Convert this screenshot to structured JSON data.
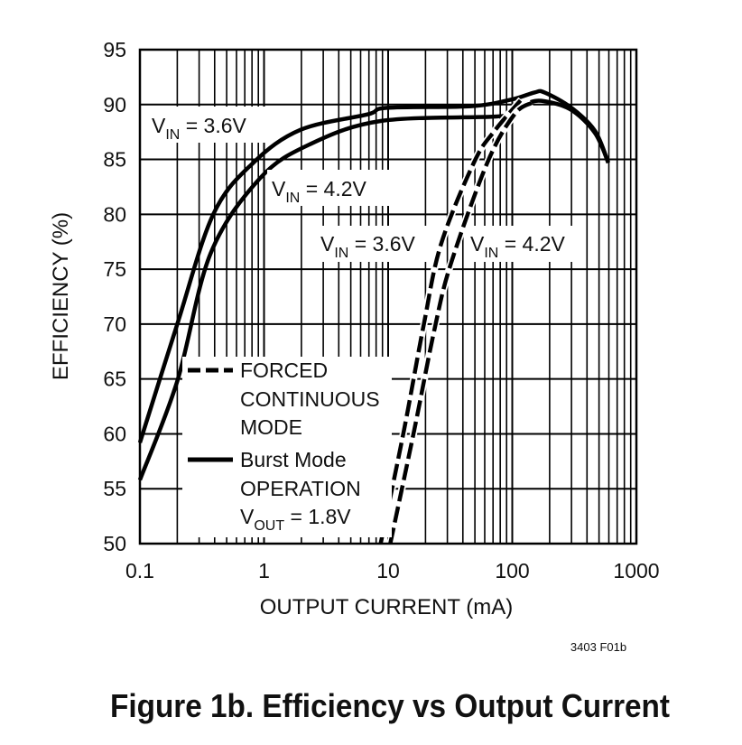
{
  "chart_data": {
    "type": "line",
    "xlabel": "OUTPUT CURRENT (mA)",
    "ylabel": "EFFICIENCY (%)",
    "x_scale": "log",
    "xlim": [
      0.1,
      1000
    ],
    "ylim": [
      50,
      95
    ],
    "grid": true,
    "x_ticks": [
      "0.1",
      "1",
      "10",
      "100",
      "1000"
    ],
    "y_ticks": [
      "50",
      "55",
      "60",
      "65",
      "70",
      "75",
      "80",
      "85",
      "90",
      "95"
    ],
    "series": [
      {
        "style": "solid",
        "label_main": "V",
        "label_sub": "IN",
        "label_rest": " = 3.6V",
        "x": [
          0.1,
          0.2,
          0.39,
          0.82,
          1.97,
          6.8,
          9.8,
          46.6,
          98,
          151,
          182,
          300,
          464,
          594
        ],
        "y": [
          59.2,
          70,
          80,
          84.7,
          87.7,
          89.1,
          89.7,
          89.85,
          90.45,
          91.1,
          91.1,
          89.7,
          87.6,
          84.7
        ]
      },
      {
        "style": "solid",
        "label_main": "V",
        "label_sub": "IN",
        "label_rest": " = 4.2V",
        "x": [
          0.1,
          0.2,
          0.37,
          0.93,
          2.36,
          8.7,
          72,
          92,
          134,
          182,
          300,
          464,
          594
        ],
        "y": [
          55.8,
          64.8,
          76.4,
          83.3,
          86.4,
          88.5,
          88.9,
          89.2,
          90.15,
          90.3,
          89.5,
          87.4,
          84.7
        ]
      },
      {
        "style": "dashed",
        "label_main": "V",
        "label_sub": "IN",
        "label_rest": " = 3.6V",
        "x": [
          8.7,
          13.4,
          19.4,
          26.7,
          49.5,
          72,
          118
        ],
        "y": [
          50,
          60.3,
          70,
          77.3,
          84.8,
          87.6,
          90.45
        ]
      },
      {
        "style": "dashed",
        "label_main": "V",
        "label_sub": "IN",
        "label_rest": " = 4.2V",
        "x": [
          10.4,
          16.2,
          23.5,
          32,
          63.5,
          104,
          143
        ],
        "y": [
          50,
          60.3,
          69.4,
          75.5,
          84.8,
          89.1,
          90.15
        ]
      }
    ],
    "legend": {
      "dashed": [
        "FORCED",
        "CONTINUOUS",
        "MODE"
      ],
      "solid": [
        "Burst Mode",
        "OPERATION"
      ],
      "vout_main": "V",
      "vout_sub": "OUT",
      "vout_rest": " = 1.8V",
      "placement": "bottom-left"
    },
    "figure_id": "3403 F01b",
    "caption": "Figure 1b. Efficiency vs Output Current"
  }
}
